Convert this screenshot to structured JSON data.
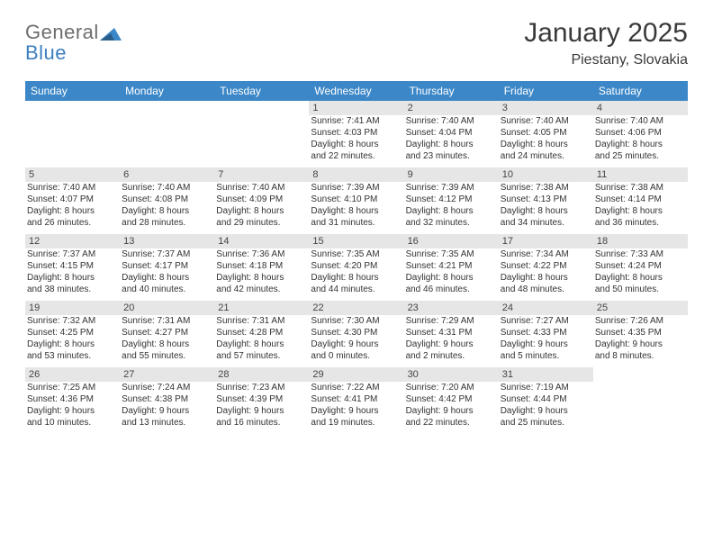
{
  "logo": {
    "word1": "General",
    "word2": "Blue",
    "triangle_color": "#3c87c7"
  },
  "title": "January 2025",
  "subtitle": "Piestany, Slovakia",
  "colors": {
    "header_bg": "#3c87c7",
    "header_text": "#ffffff",
    "daynum_bg": "#e6e6e6",
    "rule": "#2f6aa0",
    "page_bg": "#ffffff",
    "text": "#333333",
    "logo_gray": "#6d6d6d",
    "logo_blue": "#3c7fbf"
  },
  "typography": {
    "title_fontsize": 30,
    "subtitle_fontsize": 16,
    "weekday_fontsize": 12,
    "daynum_fontsize": 11,
    "body_fontsize": 10
  },
  "weekdays": [
    "Sunday",
    "Monday",
    "Tuesday",
    "Wednesday",
    "Thursday",
    "Friday",
    "Saturday"
  ],
  "weeks": [
    {
      "nums": [
        "",
        "",
        "",
        "1",
        "2",
        "3",
        "4"
      ],
      "cells": [
        {
          "lines": []
        },
        {
          "lines": []
        },
        {
          "lines": []
        },
        {
          "lines": [
            "Sunrise: 7:41 AM",
            "Sunset: 4:03 PM",
            "Daylight: 8 hours",
            "and 22 minutes."
          ]
        },
        {
          "lines": [
            "Sunrise: 7:40 AM",
            "Sunset: 4:04 PM",
            "Daylight: 8 hours",
            "and 23 minutes."
          ]
        },
        {
          "lines": [
            "Sunrise: 7:40 AM",
            "Sunset: 4:05 PM",
            "Daylight: 8 hours",
            "and 24 minutes."
          ]
        },
        {
          "lines": [
            "Sunrise: 7:40 AM",
            "Sunset: 4:06 PM",
            "Daylight: 8 hours",
            "and 25 minutes."
          ]
        }
      ]
    },
    {
      "nums": [
        "5",
        "6",
        "7",
        "8",
        "9",
        "10",
        "11"
      ],
      "cells": [
        {
          "lines": [
            "Sunrise: 7:40 AM",
            "Sunset: 4:07 PM",
            "Daylight: 8 hours",
            "and 26 minutes."
          ]
        },
        {
          "lines": [
            "Sunrise: 7:40 AM",
            "Sunset: 4:08 PM",
            "Daylight: 8 hours",
            "and 28 minutes."
          ]
        },
        {
          "lines": [
            "Sunrise: 7:40 AM",
            "Sunset: 4:09 PM",
            "Daylight: 8 hours",
            "and 29 minutes."
          ]
        },
        {
          "lines": [
            "Sunrise: 7:39 AM",
            "Sunset: 4:10 PM",
            "Daylight: 8 hours",
            "and 31 minutes."
          ]
        },
        {
          "lines": [
            "Sunrise: 7:39 AM",
            "Sunset: 4:12 PM",
            "Daylight: 8 hours",
            "and 32 minutes."
          ]
        },
        {
          "lines": [
            "Sunrise: 7:38 AM",
            "Sunset: 4:13 PM",
            "Daylight: 8 hours",
            "and 34 minutes."
          ]
        },
        {
          "lines": [
            "Sunrise: 7:38 AM",
            "Sunset: 4:14 PM",
            "Daylight: 8 hours",
            "and 36 minutes."
          ]
        }
      ]
    },
    {
      "nums": [
        "12",
        "13",
        "14",
        "15",
        "16",
        "17",
        "18"
      ],
      "cells": [
        {
          "lines": [
            "Sunrise: 7:37 AM",
            "Sunset: 4:15 PM",
            "Daylight: 8 hours",
            "and 38 minutes."
          ]
        },
        {
          "lines": [
            "Sunrise: 7:37 AM",
            "Sunset: 4:17 PM",
            "Daylight: 8 hours",
            "and 40 minutes."
          ]
        },
        {
          "lines": [
            "Sunrise: 7:36 AM",
            "Sunset: 4:18 PM",
            "Daylight: 8 hours",
            "and 42 minutes."
          ]
        },
        {
          "lines": [
            "Sunrise: 7:35 AM",
            "Sunset: 4:20 PM",
            "Daylight: 8 hours",
            "and 44 minutes."
          ]
        },
        {
          "lines": [
            "Sunrise: 7:35 AM",
            "Sunset: 4:21 PM",
            "Daylight: 8 hours",
            "and 46 minutes."
          ]
        },
        {
          "lines": [
            "Sunrise: 7:34 AM",
            "Sunset: 4:22 PM",
            "Daylight: 8 hours",
            "and 48 minutes."
          ]
        },
        {
          "lines": [
            "Sunrise: 7:33 AM",
            "Sunset: 4:24 PM",
            "Daylight: 8 hours",
            "and 50 minutes."
          ]
        }
      ]
    },
    {
      "nums": [
        "19",
        "20",
        "21",
        "22",
        "23",
        "24",
        "25"
      ],
      "cells": [
        {
          "lines": [
            "Sunrise: 7:32 AM",
            "Sunset: 4:25 PM",
            "Daylight: 8 hours",
            "and 53 minutes."
          ]
        },
        {
          "lines": [
            "Sunrise: 7:31 AM",
            "Sunset: 4:27 PM",
            "Daylight: 8 hours",
            "and 55 minutes."
          ]
        },
        {
          "lines": [
            "Sunrise: 7:31 AM",
            "Sunset: 4:28 PM",
            "Daylight: 8 hours",
            "and 57 minutes."
          ]
        },
        {
          "lines": [
            "Sunrise: 7:30 AM",
            "Sunset: 4:30 PM",
            "Daylight: 9 hours",
            "and 0 minutes."
          ]
        },
        {
          "lines": [
            "Sunrise: 7:29 AM",
            "Sunset: 4:31 PM",
            "Daylight: 9 hours",
            "and 2 minutes."
          ]
        },
        {
          "lines": [
            "Sunrise: 7:27 AM",
            "Sunset: 4:33 PM",
            "Daylight: 9 hours",
            "and 5 minutes."
          ]
        },
        {
          "lines": [
            "Sunrise: 7:26 AM",
            "Sunset: 4:35 PM",
            "Daylight: 9 hours",
            "and 8 minutes."
          ]
        }
      ]
    },
    {
      "nums": [
        "26",
        "27",
        "28",
        "29",
        "30",
        "31",
        ""
      ],
      "cells": [
        {
          "lines": [
            "Sunrise: 7:25 AM",
            "Sunset: 4:36 PM",
            "Daylight: 9 hours",
            "and 10 minutes."
          ]
        },
        {
          "lines": [
            "Sunrise: 7:24 AM",
            "Sunset: 4:38 PM",
            "Daylight: 9 hours",
            "and 13 minutes."
          ]
        },
        {
          "lines": [
            "Sunrise: 7:23 AM",
            "Sunset: 4:39 PM",
            "Daylight: 9 hours",
            "and 16 minutes."
          ]
        },
        {
          "lines": [
            "Sunrise: 7:22 AM",
            "Sunset: 4:41 PM",
            "Daylight: 9 hours",
            "and 19 minutes."
          ]
        },
        {
          "lines": [
            "Sunrise: 7:20 AM",
            "Sunset: 4:42 PM",
            "Daylight: 9 hours",
            "and 22 minutes."
          ]
        },
        {
          "lines": [
            "Sunrise: 7:19 AM",
            "Sunset: 4:44 PM",
            "Daylight: 9 hours",
            "and 25 minutes."
          ]
        },
        {
          "lines": []
        }
      ]
    }
  ]
}
